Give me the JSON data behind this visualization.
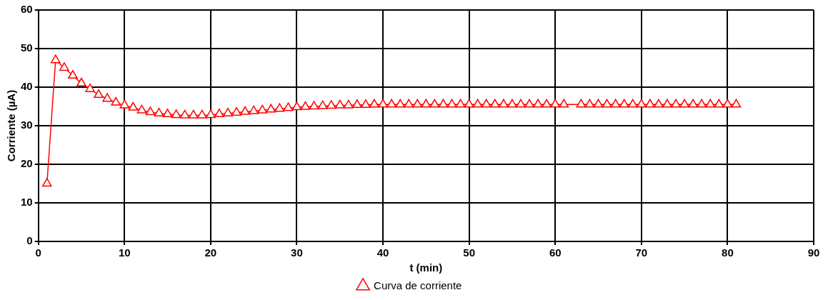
{
  "chart_data": {
    "type": "line",
    "xlabel": "t (min)",
    "ylabel": "Corriente (µA)",
    "xlim": [
      0,
      90
    ],
    "xticks": [
      0,
      10,
      20,
      30,
      40,
      50,
      60,
      70,
      80,
      90
    ],
    "ylim": [
      0,
      60
    ],
    "yticks": [
      0,
      10,
      20,
      30,
      40,
      50,
      60
    ],
    "grid": true,
    "legend": "bottom",
    "marker": "triangle",
    "line_style": "solid",
    "series": [
      {
        "name": "Curva de corriente",
        "color": "#ff0000",
        "x": [
          1,
          2,
          3,
          4,
          5,
          6,
          7,
          8,
          9,
          10,
          11,
          12,
          13,
          14,
          15,
          16,
          17,
          18,
          19,
          20,
          21,
          22,
          23,
          24,
          25,
          26,
          27,
          28,
          29,
          30,
          31,
          32,
          33,
          34,
          35,
          36,
          37,
          38,
          39,
          40,
          41,
          42,
          43,
          44,
          45,
          46,
          47,
          48,
          49,
          50,
          51,
          52,
          53,
          54,
          55,
          56,
          57,
          58,
          59,
          60,
          61,
          63,
          64,
          65,
          66,
          67,
          68,
          69,
          70,
          71,
          72,
          73,
          74,
          75,
          76,
          77,
          78,
          79,
          80,
          81
        ],
        "values": [
          15,
          47,
          45,
          43,
          41,
          39.5,
          38,
          37,
          36,
          35.3,
          34.7,
          34,
          33.5,
          33.2,
          33,
          32.8,
          32.7,
          32.7,
          32.7,
          32.8,
          33,
          33.2,
          33.4,
          33.6,
          33.8,
          34,
          34.2,
          34.4,
          34.6,
          34.8,
          34.9,
          35,
          35.1,
          35.2,
          35.3,
          35.3,
          35.4,
          35.4,
          35.5,
          35.5,
          35.5,
          35.5,
          35.5,
          35.5,
          35.5,
          35.5,
          35.5,
          35.5,
          35.5,
          35.5,
          35.5,
          35.5,
          35.5,
          35.5,
          35.5,
          35.5,
          35.5,
          35.5,
          35.5,
          35.5,
          35.5,
          35.5,
          35.5,
          35.5,
          35.5,
          35.5,
          35.5,
          35.5,
          35.5,
          35.5,
          35.5,
          35.5,
          35.5,
          35.5,
          35.5,
          35.5,
          35.5,
          35.5,
          35.5,
          35.5
        ]
      }
    ]
  }
}
